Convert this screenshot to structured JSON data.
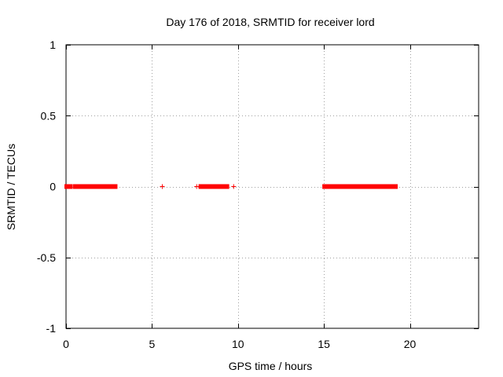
{
  "chart_data": {
    "type": "scatter",
    "title": "Day 176 of 2018, SRMTID for receiver lord",
    "xlabel": "GPS time / hours",
    "ylabel": "SRMTID / TECUs",
    "xlim": [
      0,
      24
    ],
    "ylim": [
      -1,
      1
    ],
    "xticks": [
      0,
      5,
      10,
      15,
      20
    ],
    "xtick_labels": [
      "0",
      "5",
      "10",
      "15",
      "20"
    ],
    "yticks": [
      -1,
      -0.5,
      0,
      0.5,
      1
    ],
    "ytick_labels": [
      "-1",
      "-0.5",
      "0",
      "0.5",
      "1"
    ],
    "grid": true,
    "marker": "+",
    "series_color": "#ff0000",
    "segments": [
      {
        "x_start": 0.0,
        "x_end": 0.3,
        "y": 0
      },
      {
        "x_start": 0.5,
        "x_end": 2.9,
        "y": 0
      },
      {
        "x_start": 7.8,
        "x_end": 8.1,
        "y": 0
      },
      {
        "x_start": 8.2,
        "x_end": 8.4,
        "y": 0
      },
      {
        "x_start": 8.6,
        "x_end": 9.4,
        "y": 0
      },
      {
        "x_start": 15.0,
        "x_end": 16.8,
        "y": 0
      },
      {
        "x_start": 16.9,
        "x_end": 19.2,
        "y": 0
      }
    ],
    "points": [
      {
        "x": 5.6,
        "y": 0
      },
      {
        "x": 7.6,
        "y": 0
      },
      {
        "x": 8.5,
        "y": 0
      },
      {
        "x": 9.75,
        "y": 0
      }
    ]
  }
}
